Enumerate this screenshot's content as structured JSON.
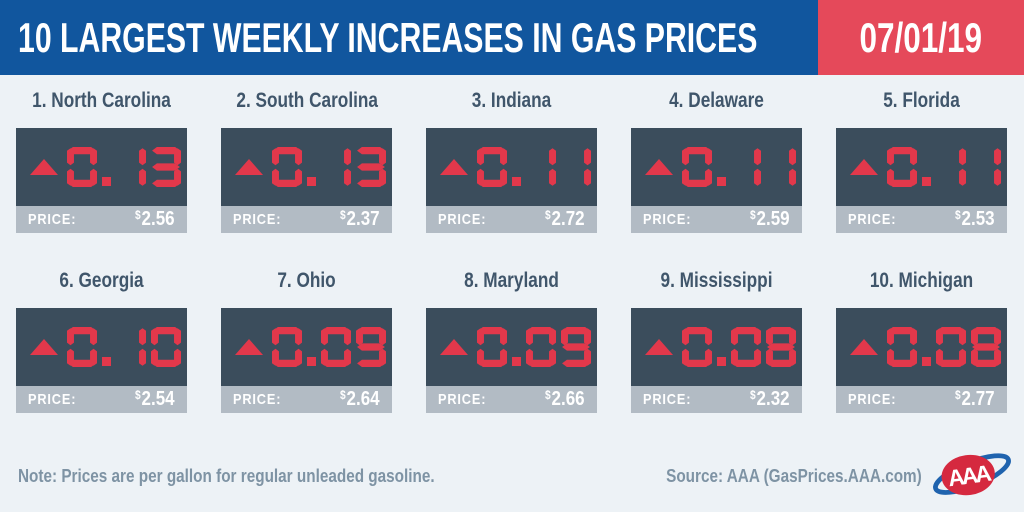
{
  "header": {
    "title": "10 LARGEST WEEKLY INCREASES IN GAS PRICES",
    "date": "07/01/19",
    "blue": "#11569e",
    "red": "#e5495a"
  },
  "cards": [
    {
      "label": "1. North Carolina",
      "increase": "0.13",
      "price_label": "PRICE:",
      "currency": "$",
      "amount": "2.56"
    },
    {
      "label": "2. South Carolina",
      "increase": "0.13",
      "price_label": "PRICE:",
      "currency": "$",
      "amount": "2.37"
    },
    {
      "label": "3. Indiana",
      "increase": "0.11",
      "price_label": "PRICE:",
      "currency": "$",
      "amount": "2.72"
    },
    {
      "label": "4. Delaware",
      "increase": "0.11",
      "price_label": "PRICE:",
      "currency": "$",
      "amount": "2.59"
    },
    {
      "label": "5. Florida",
      "increase": "0.11",
      "price_label": "PRICE:",
      "currency": "$",
      "amount": "2.53"
    },
    {
      "label": "6. Georgia",
      "increase": "0.10",
      "price_label": "PRICE:",
      "currency": "$",
      "amount": "2.54"
    },
    {
      "label": "7. Ohio",
      "increase": "0.09",
      "price_label": "PRICE:",
      "currency": "$",
      "amount": "2.64"
    },
    {
      "label": "8. Maryland",
      "increase": "0.09",
      "price_label": "PRICE:",
      "currency": "$",
      "amount": "2.66"
    },
    {
      "label": "9. Mississippi",
      "increase": "0.08",
      "price_label": "PRICE:",
      "currency": "$",
      "amount": "2.32"
    },
    {
      "label": "10. Michigan",
      "increase": "0.08",
      "price_label": "PRICE:",
      "currency": "$",
      "amount": "2.77"
    }
  ],
  "footer": {
    "note": "Note: Prices are per gallon for regular unleaded gasoline.",
    "source": "Source: AAA (GasPrices.AAA.com)",
    "logo_text": "AAA"
  },
  "colors": {
    "background": "#edf2f6",
    "card_dark": "#3b4d5c",
    "price_bar": "#b2bbc4",
    "digit_red": "#e2384b",
    "state_label": "#40566b",
    "footer_text": "#7e93a4"
  },
  "chart_data": {
    "type": "table",
    "title": "10 LARGEST WEEKLY INCREASES IN GAS PRICES",
    "date": "07/01/19",
    "columns": [
      "rank",
      "state",
      "weekly_increase_usd",
      "price_usd_per_gallon"
    ],
    "rows": [
      [
        1,
        "North Carolina",
        0.13,
        2.56
      ],
      [
        2,
        "South Carolina",
        0.13,
        2.37
      ],
      [
        3,
        "Indiana",
        0.11,
        2.72
      ],
      [
        4,
        "Delaware",
        0.11,
        2.59
      ],
      [
        5,
        "Florida",
        0.11,
        2.53
      ],
      [
        6,
        "Georgia",
        0.1,
        2.54
      ],
      [
        7,
        "Ohio",
        0.09,
        2.64
      ],
      [
        8,
        "Maryland",
        0.09,
        2.66
      ],
      [
        9,
        "Mississippi",
        0.08,
        2.32
      ],
      [
        10,
        "Michigan",
        0.08,
        2.77
      ]
    ],
    "note": "Prices are per gallon for regular unleaded gasoline.",
    "source": "AAA (GasPrices.AAA.com)"
  }
}
